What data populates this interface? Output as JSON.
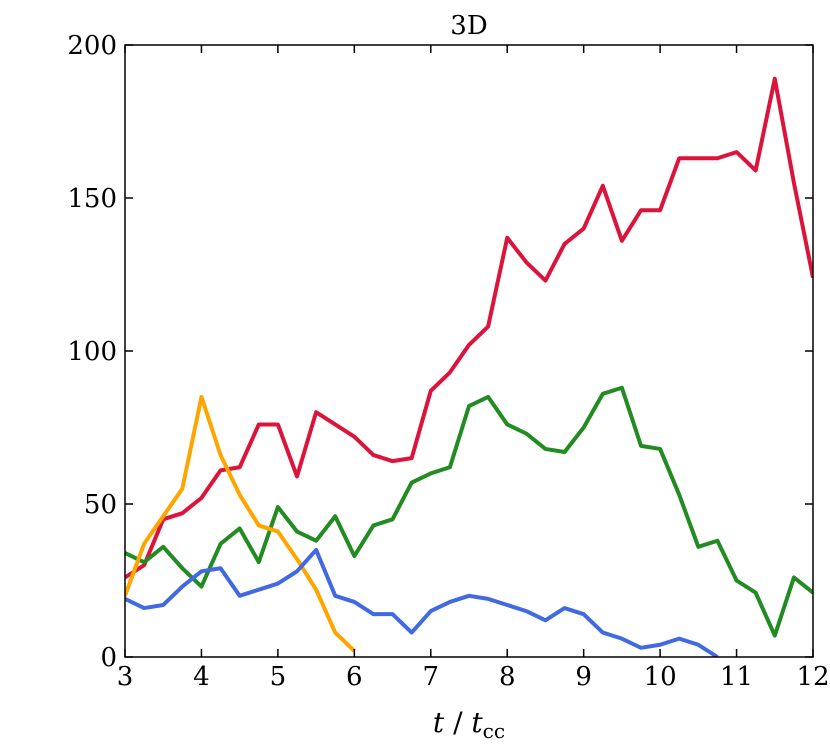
{
  "chart_data": {
    "type": "line",
    "title": "3D",
    "xlabel": {
      "main": "t",
      "slash": " / ",
      "var": "t",
      "sub": "cc"
    },
    "ylabel": "",
    "xlim": [
      3,
      12
    ],
    "ylim": [
      0,
      200
    ],
    "xticks": [
      "3",
      "4",
      "5",
      "6",
      "7",
      "8",
      "9",
      "10",
      "11",
      "12"
    ],
    "yticks": [
      "0",
      "50",
      "100",
      "150",
      "200"
    ],
    "grid": false,
    "series": [
      {
        "color": "#dc143c",
        "x": [
          3,
          3.25,
          3.5,
          3.75,
          4,
          4.25,
          4.5,
          4.75,
          5,
          5.25,
          5.5,
          5.75,
          6,
          6.25,
          6.5,
          6.75,
          7,
          7.25,
          7.5,
          7.75,
          8,
          8.25,
          8.5,
          8.75,
          9,
          9.25,
          9.5,
          9.75,
          10,
          10.25,
          10.5,
          10.75,
          11,
          11.25,
          11.5,
          11.75,
          12
        ],
        "y": [
          26,
          30,
          45,
          47,
          52,
          61,
          62,
          76,
          76,
          59,
          80,
          76,
          72,
          66,
          64,
          65,
          87,
          93,
          102,
          108,
          137,
          129,
          123,
          135,
          140,
          154,
          136,
          146,
          146,
          163,
          163,
          163,
          165,
          159,
          189,
          155,
          124
        ]
      },
      {
        "color": "#228b22",
        "x": [
          3,
          3.25,
          3.5,
          3.75,
          4,
          4.25,
          4.5,
          4.75,
          5,
          5.25,
          5.5,
          5.75,
          6,
          6.25,
          6.5,
          6.75,
          7,
          7.25,
          7.5,
          7.75,
          8,
          8.25,
          8.5,
          8.75,
          9,
          9.25,
          9.5,
          9.75,
          10,
          10.25,
          10.5,
          10.75,
          11,
          11.25,
          11.5,
          11.75,
          12
        ],
        "y": [
          34,
          31,
          36,
          29,
          23,
          37,
          42,
          31,
          49,
          41,
          38,
          46,
          33,
          43,
          45,
          57,
          60,
          62,
          82,
          85,
          76,
          73,
          68,
          67,
          75,
          86,
          88,
          69,
          68,
          53,
          36,
          38,
          25,
          21,
          7,
          26,
          21
        ]
      },
      {
        "color": "#ffa500",
        "x": [
          3,
          3.25,
          3.5,
          3.75,
          4,
          4.25,
          4.5,
          4.75,
          5,
          5.25,
          5.5,
          5.75,
          6
        ],
        "y": [
          20,
          37,
          46,
          55,
          85,
          66,
          53,
          43,
          41,
          32,
          22,
          8,
          2
        ]
      },
      {
        "color": "#4169e1",
        "x": [
          3,
          3.25,
          3.5,
          3.75,
          4,
          4.25,
          4.5,
          4.75,
          5,
          5.25,
          5.5,
          5.75,
          6,
          6.25,
          6.5,
          6.75,
          7,
          7.25,
          7.5,
          7.75,
          8,
          8.25,
          8.5,
          8.75,
          9,
          9.25,
          9.5,
          9.75,
          10,
          10.25,
          10.5,
          10.75
        ],
        "y": [
          19,
          16,
          17,
          23,
          28,
          29,
          20,
          22,
          24,
          28,
          35,
          20,
          18,
          14,
          14,
          8,
          15,
          18,
          20,
          19,
          17,
          15,
          12,
          16,
          14,
          8,
          6,
          3,
          4,
          6,
          4,
          0
        ]
      }
    ]
  }
}
